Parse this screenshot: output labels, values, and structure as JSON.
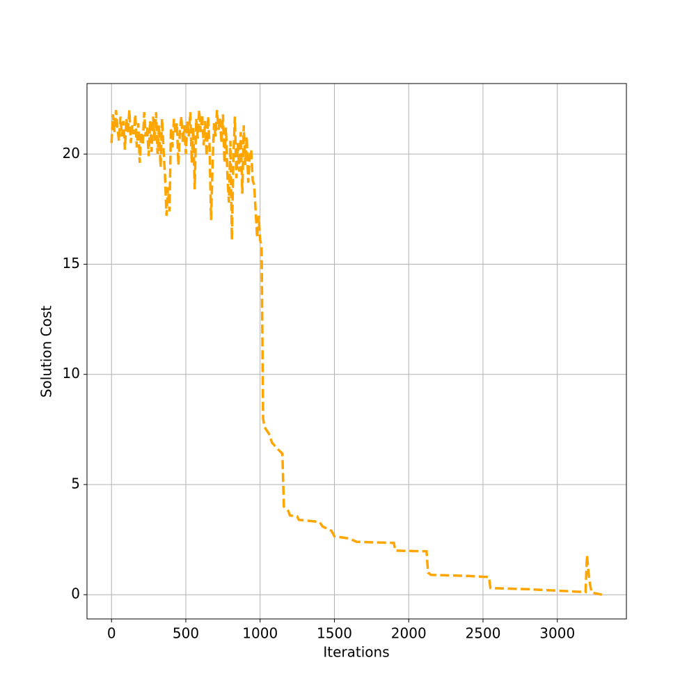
{
  "chart_data": {
    "type": "line",
    "xlabel": "Iterations",
    "ylabel": "Solution Cost",
    "xlim": [
      -165,
      3465
    ],
    "ylim": [
      -1.1,
      23.2
    ],
    "xticks": [
      0,
      500,
      1000,
      1500,
      2000,
      2500,
      3000
    ],
    "yticks": [
      0,
      5,
      10,
      15,
      20
    ],
    "grid": true,
    "series": [
      {
        "color": "#ffa500",
        "x": [
          0,
          10,
          20,
          30,
          40,
          50,
          60,
          70,
          80,
          90,
          100,
          110,
          120,
          130,
          140,
          150,
          160,
          170,
          180,
          190,
          200,
          210,
          220,
          230,
          240,
          250,
          260,
          270,
          280,
          290,
          300,
          310,
          320,
          330,
          340,
          350,
          360,
          370,
          380,
          390,
          400,
          410,
          420,
          430,
          440,
          450,
          460,
          470,
          480,
          490,
          500,
          510,
          520,
          530,
          540,
          550,
          560,
          570,
          580,
          590,
          600,
          610,
          620,
          630,
          640,
          650,
          660,
          670,
          680,
          690,
          700,
          710,
          720,
          730,
          740,
          750,
          760,
          770,
          780,
          790,
          800,
          810,
          820,
          830,
          840,
          850,
          860,
          870,
          880,
          890,
          900,
          910,
          920,
          930,
          940,
          950,
          960,
          970,
          980,
          990,
          1000,
          1010,
          1020,
          1030,
          1060,
          1080,
          1120,
          1150,
          1155,
          1160,
          1190,
          1200,
          1250,
          1260,
          1400,
          1420,
          1480,
          1500,
          1600,
          1650,
          1900,
          1910,
          2120,
          2130,
          2150,
          2400,
          2540,
          2550,
          2800,
          3100,
          3190,
          3200,
          3210,
          3220,
          3230,
          3300
        ],
        "values": [
          20.5,
          21.8,
          21.0,
          22.0,
          21.2,
          20.6,
          21.7,
          20.8,
          21.5,
          20.2,
          21.6,
          21.0,
          22.0,
          20.5,
          21.3,
          20.9,
          21.8,
          20.3,
          21.4,
          19.6,
          21.0,
          20.4,
          21.9,
          20.8,
          21.2,
          19.9,
          21.5,
          20.1,
          21.7,
          20.6,
          21.9,
          20.0,
          21.3,
          19.4,
          21.6,
          20.2,
          19.0,
          17.2,
          18.5,
          17.4,
          21.2,
          20.3,
          21.6,
          20.9,
          21.4,
          19.5,
          21.0,
          21.7,
          20.5,
          21.3,
          20.0,
          21.5,
          20.8,
          21.9,
          19.6,
          21.2,
          18.4,
          21.6,
          20.7,
          22.0,
          21.0,
          21.8,
          20.4,
          21.5,
          19.9,
          21.7,
          20.3,
          17.0,
          19.5,
          21.4,
          20.8,
          22.0,
          21.1,
          21.6,
          20.5,
          21.8,
          19.6,
          21.2,
          19.0,
          17.8,
          20.6,
          16.1,
          19.8,
          21.7,
          18.9,
          20.5,
          19.2,
          21.0,
          18.2,
          21.3,
          19.5,
          20.8,
          18.7,
          19.9,
          20.2,
          18.8,
          18.6,
          17.4,
          16.2,
          17.2,
          16.1,
          15.8,
          8.0,
          7.6,
          7.3,
          6.9,
          6.6,
          6.4,
          5.1,
          4.0,
          3.8,
          3.6,
          3.55,
          3.4,
          3.3,
          3.1,
          2.9,
          2.65,
          2.55,
          2.4,
          2.35,
          2.0,
          1.97,
          1.0,
          0.9,
          0.85,
          0.8,
          0.3,
          0.25,
          0.15,
          0.12,
          1.8,
          1.0,
          0.5,
          0.1,
          0.0
        ]
      }
    ]
  }
}
